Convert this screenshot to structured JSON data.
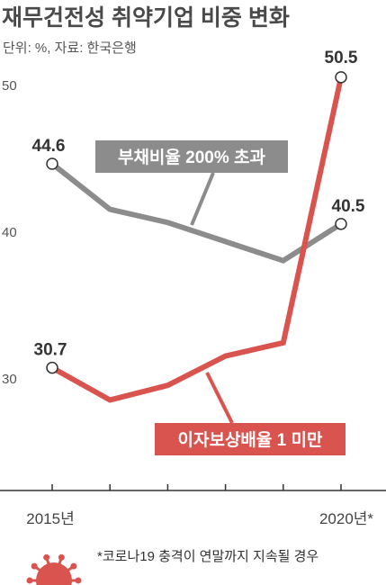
{
  "title": "재무건전성 취약기업 비중 변화",
  "unit_note": "단위: %, 자료: 한국은행",
  "footnote": "*코로나19 충격이 연말까지 지속될 경우",
  "colors": {
    "debt_series": "#8c8c8c",
    "interest_series": "#d9534f",
    "axis": "#333333",
    "virus": "#d9534f"
  },
  "chart_data": {
    "type": "line",
    "title": "재무건전성 취약기업 비중 변화",
    "unit": "단위: %, 자료: 한국은행",
    "x": [
      2015,
      2016,
      2017,
      2018,
      2019,
      2020
    ],
    "x_tick_labels": [
      "2015년",
      "",
      "",
      "",
      "",
      "2020년*"
    ],
    "y_ticks": [
      30,
      40,
      50
    ],
    "ylim": [
      22,
      54
    ],
    "grid": false,
    "series": [
      {
        "name": "부채비율 200% 초과",
        "values": [
          44.6,
          41.5,
          40.6,
          39.3,
          38.0,
          40.5
        ],
        "color": "#8c8c8c",
        "point_labels": [
          "44.6",
          "",
          "",
          "",
          "",
          "40.5"
        ]
      },
      {
        "name": "이자보상배율 1 미만",
        "values": [
          30.7,
          28.5,
          29.5,
          31.5,
          32.4,
          50.5
        ],
        "color": "#d9534f",
        "point_labels": [
          "30.7",
          "",
          "",
          "",
          "",
          "50.5"
        ]
      }
    ]
  }
}
